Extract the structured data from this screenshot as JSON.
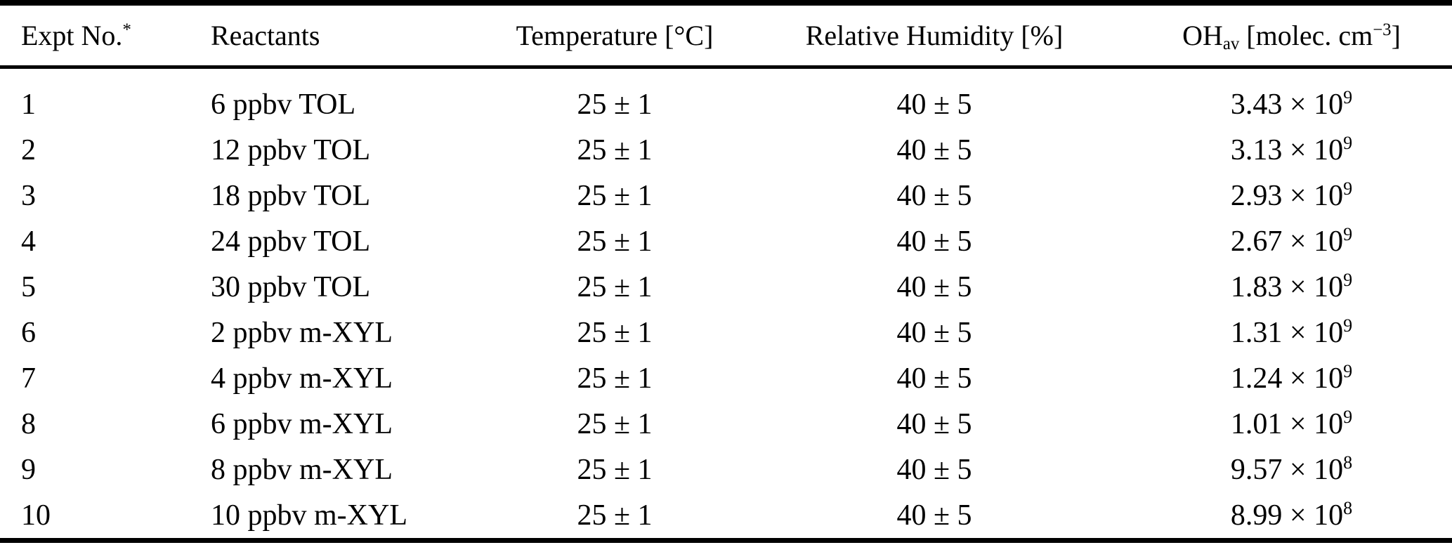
{
  "table": {
    "colors": {
      "text": "#000000",
      "background": "#ffffff",
      "rule": "#000000"
    },
    "header": {
      "expt_no": "Expt No.",
      "expt_no_sup": "*",
      "reactants": "Reactants",
      "temperature": "Temperature [°C]",
      "humidity": "Relative Humidity [%]",
      "oh_prefix": "OH",
      "oh_sub": "av",
      "oh_mid": " [molec. cm",
      "oh_sup": "−3",
      "oh_close": "]"
    },
    "rows": [
      {
        "expt": "1",
        "reactants": "6 ppbv TOL",
        "temperature": "25 ± 1",
        "humidity": "40 ± 5",
        "oh_base": "3.43 × 10",
        "oh_exp": "9"
      },
      {
        "expt": "2",
        "reactants": "12 ppbv TOL",
        "temperature": "25 ± 1",
        "humidity": "40 ± 5",
        "oh_base": "3.13 × 10",
        "oh_exp": "9"
      },
      {
        "expt": "3",
        "reactants": "18 ppbv TOL",
        "temperature": "25 ± 1",
        "humidity": "40 ± 5",
        "oh_base": "2.93 × 10",
        "oh_exp": "9"
      },
      {
        "expt": "4",
        "reactants": "24 ppbv TOL",
        "temperature": "25 ± 1",
        "humidity": "40 ± 5",
        "oh_base": "2.67 × 10",
        "oh_exp": "9"
      },
      {
        "expt": "5",
        "reactants": "30 ppbv TOL",
        "temperature": "25 ± 1",
        "humidity": "40 ± 5",
        "oh_base": "1.83 × 10",
        "oh_exp": "9"
      },
      {
        "expt": "6",
        "reactants": "2 ppbv m-XYL",
        "temperature": "25 ± 1",
        "humidity": "40 ± 5",
        "oh_base": "1.31 × 10",
        "oh_exp": "9"
      },
      {
        "expt": "7",
        "reactants": "4 ppbv m-XYL",
        "temperature": "25 ± 1",
        "humidity": "40 ± 5",
        "oh_base": "1.24 × 10",
        "oh_exp": "9"
      },
      {
        "expt": "8",
        "reactants": "6 ppbv m-XYL",
        "temperature": "25 ± 1",
        "humidity": "40 ± 5",
        "oh_base": "1.01 × 10",
        "oh_exp": "9"
      },
      {
        "expt": "9",
        "reactants": "8 ppbv m-XYL",
        "temperature": "25 ± 1",
        "humidity": "40 ± 5",
        "oh_base": "9.57 × 10",
        "oh_exp": "8"
      },
      {
        "expt": "10",
        "reactants": "10 ppbv m-XYL",
        "temperature": "25 ± 1",
        "humidity": "40 ± 5",
        "oh_base": "8.99 × 10",
        "oh_exp": "8"
      }
    ]
  }
}
